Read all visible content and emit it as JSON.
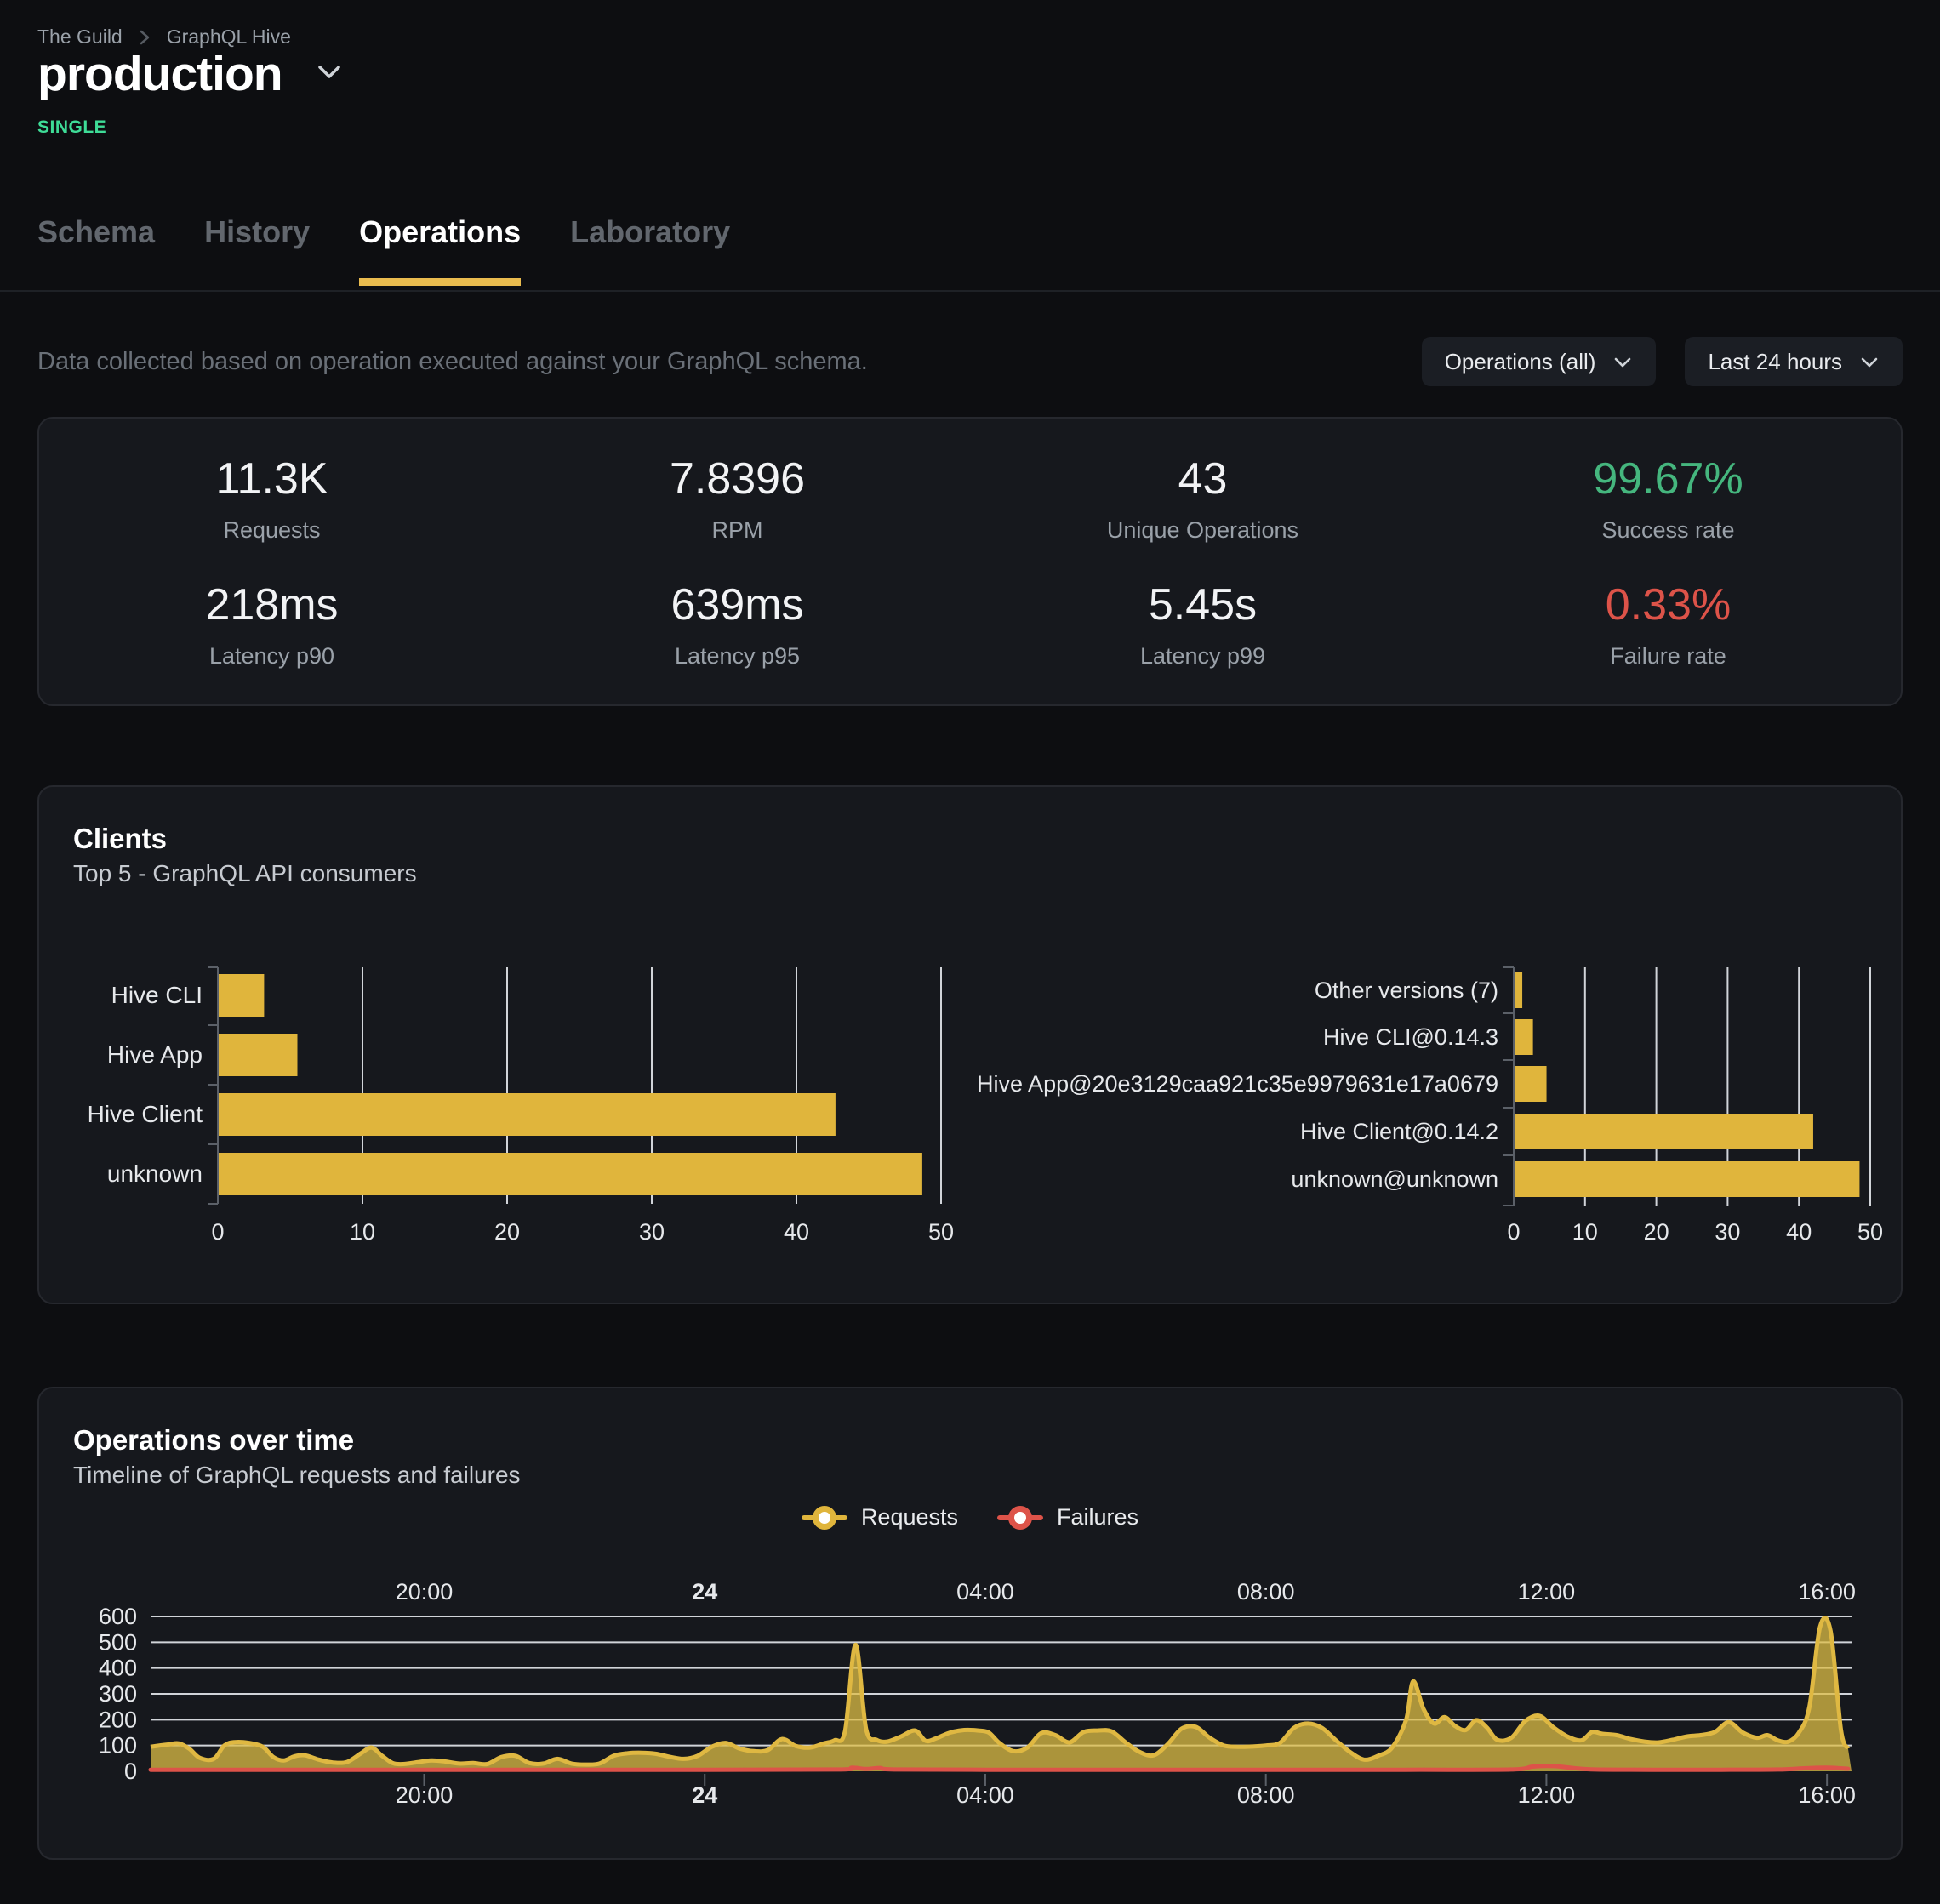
{
  "colors": {
    "accent": "#e0b53c",
    "accent_underline": "#e9bb4e",
    "timeline_line": "#dfb842",
    "timeline_fill": "rgba(222,190,70,0.75)",
    "red": "#dd5349",
    "green": "#45b67e",
    "badge_green": "#3edc97",
    "gridline": "rgba(230,233,238,0.9)",
    "axis": "#5b6068",
    "tick_label": "#e6e8eb"
  },
  "header": {
    "breadcrumb": [
      {
        "label": "The Guild"
      },
      {
        "label": "GraphQL Hive"
      }
    ],
    "title": "production",
    "badge": "SINGLE"
  },
  "tabs": [
    {
      "label": "Schema",
      "active": false
    },
    {
      "label": "History",
      "active": false
    },
    {
      "label": "Operations",
      "active": true
    },
    {
      "label": "Laboratory",
      "active": false
    }
  ],
  "controls": {
    "description": "Data collected based on operation executed against your GraphQL schema.",
    "operations_filter": "Operations (all)",
    "time_range": "Last 24 hours"
  },
  "stats": [
    {
      "value": "11.3K",
      "label": "Requests",
      "color": "default"
    },
    {
      "value": "7.8396",
      "label": "RPM",
      "color": "default"
    },
    {
      "value": "43",
      "label": "Unique Operations",
      "color": "default"
    },
    {
      "value": "99.67%",
      "label": "Success rate",
      "color": "green"
    },
    {
      "value": "218ms",
      "label": "Latency p90",
      "color": "default"
    },
    {
      "value": "639ms",
      "label": "Latency p95",
      "color": "default"
    },
    {
      "value": "5.45s",
      "label": "Latency p99",
      "color": "default"
    },
    {
      "value": "0.33%",
      "label": "Failure rate",
      "color": "red"
    }
  ],
  "clients_card": {
    "title": "Clients",
    "subtitle": "Top 5 - GraphQL API consumers"
  },
  "timeline_card": {
    "title": "Operations over time",
    "subtitle": "Timeline of GraphQL requests and failures",
    "legend": [
      {
        "label": "Requests"
      },
      {
        "label": "Failures"
      }
    ]
  },
  "chart_data": [
    {
      "id": "clients-by-name",
      "type": "bar",
      "orientation": "horizontal",
      "categories": [
        "Hive CLI",
        "Hive App",
        "Hive Client",
        "unknown"
      ],
      "values": [
        3.2,
        5.5,
        42.7,
        48.7
      ],
      "xlim": [
        0,
        50
      ],
      "xticks": [
        0,
        10,
        20,
        30,
        40,
        50
      ],
      "grid": true,
      "legend_position": "none"
    },
    {
      "id": "clients-by-version",
      "type": "bar",
      "orientation": "horizontal",
      "categories": [
        "Other versions (7)",
        "Hive CLI@0.14.3",
        "Hive App@20e3129caa921c35e9979631e17a0679",
        "Hive Client@0.14.2",
        "unknown@unknown"
      ],
      "values": [
        1.2,
        2.7,
        4.6,
        42.0,
        48.5
      ],
      "xlim": [
        0,
        50
      ],
      "xticks": [
        0,
        10,
        20,
        30,
        40,
        50
      ],
      "grid": true,
      "legend_position": "none"
    },
    {
      "id": "operations-over-time",
      "type": "area",
      "title": "Operations over time",
      "xrange": [
        16.1,
        40.35
      ],
      "xticks": [
        {
          "hour": 20,
          "label": "20:00",
          "bold": false
        },
        {
          "hour": 24,
          "label": "24",
          "bold": true
        },
        {
          "hour": 28,
          "label": "04:00",
          "bold": false
        },
        {
          "hour": 32,
          "label": "08:00",
          "bold": false
        },
        {
          "hour": 36,
          "label": "12:00",
          "bold": false
        },
        {
          "hour": 40,
          "label": "16:00",
          "bold": false
        }
      ],
      "ylim": [
        0,
        600
      ],
      "yticks": [
        0,
        100,
        200,
        300,
        400,
        500,
        600
      ],
      "grid": true,
      "legend_position": "top-center",
      "series": [
        {
          "name": "Requests",
          "points": [
            [
              16.1,
              95
            ],
            [
              16.35,
              104
            ],
            [
              16.5,
              108
            ],
            [
              16.65,
              88
            ],
            [
              16.8,
              52
            ],
            [
              17.0,
              48
            ],
            [
              17.15,
              100
            ],
            [
              17.3,
              113
            ],
            [
              17.5,
              110
            ],
            [
              17.7,
              95
            ],
            [
              17.85,
              55
            ],
            [
              18.0,
              42
            ],
            [
              18.15,
              58
            ],
            [
              18.3,
              62
            ],
            [
              18.5,
              45
            ],
            [
              18.7,
              34
            ],
            [
              18.9,
              36
            ],
            [
              19.1,
              70
            ],
            [
              19.25,
              92
            ],
            [
              19.4,
              60
            ],
            [
              19.55,
              32
            ],
            [
              19.7,
              28
            ],
            [
              19.9,
              35
            ],
            [
              20.1,
              42
            ],
            [
              20.3,
              38
            ],
            [
              20.5,
              30
            ],
            [
              20.7,
              32
            ],
            [
              20.9,
              28
            ],
            [
              21.1,
              55
            ],
            [
              21.3,
              60
            ],
            [
              21.5,
              32
            ],
            [
              21.7,
              30
            ],
            [
              21.9,
              48
            ],
            [
              22.1,
              30
            ],
            [
              22.3,
              26
            ],
            [
              22.5,
              30
            ],
            [
              22.7,
              60
            ],
            [
              22.9,
              70
            ],
            [
              23.1,
              72
            ],
            [
              23.3,
              68
            ],
            [
              23.5,
              56
            ],
            [
              23.7,
              48
            ],
            [
              23.9,
              60
            ],
            [
              24.1,
              95
            ],
            [
              24.3,
              110
            ],
            [
              24.5,
              88
            ],
            [
              24.7,
              78
            ],
            [
              24.9,
              82
            ],
            [
              25.1,
              125
            ],
            [
              25.3,
              98
            ],
            [
              25.5,
              92
            ],
            [
              25.7,
              108
            ],
            [
              25.85,
              120
            ],
            [
              26.0,
              155
            ],
            [
              26.15,
              490
            ],
            [
              26.3,
              165
            ],
            [
              26.45,
              122
            ],
            [
              26.6,
              115
            ],
            [
              26.8,
              135
            ],
            [
              27.0,
              158
            ],
            [
              27.15,
              118
            ],
            [
              27.3,
              128
            ],
            [
              27.5,
              150
            ],
            [
              27.7,
              160
            ],
            [
              27.9,
              158
            ],
            [
              28.05,
              150
            ],
            [
              28.2,
              110
            ],
            [
              28.4,
              78
            ],
            [
              28.6,
              92
            ],
            [
              28.8,
              148
            ],
            [
              29.0,
              140
            ],
            [
              29.2,
              112
            ],
            [
              29.4,
              152
            ],
            [
              29.6,
              158
            ],
            [
              29.8,
              155
            ],
            [
              30.0,
              112
            ],
            [
              30.2,
              75
            ],
            [
              30.4,
              62
            ],
            [
              30.6,
              105
            ],
            [
              30.8,
              165
            ],
            [
              31.0,
              172
            ],
            [
              31.2,
              130
            ],
            [
              31.4,
              100
            ],
            [
              31.6,
              95
            ],
            [
              31.8,
              96
            ],
            [
              32.0,
              100
            ],
            [
              32.2,
              110
            ],
            [
              32.4,
              168
            ],
            [
              32.6,
              185
            ],
            [
              32.8,
              168
            ],
            [
              33.0,
              120
            ],
            [
              33.2,
              75
            ],
            [
              33.4,
              45
            ],
            [
              33.6,
              60
            ],
            [
              33.8,
              92
            ],
            [
              34.0,
              200
            ],
            [
              34.1,
              348
            ],
            [
              34.25,
              240
            ],
            [
              34.4,
              185
            ],
            [
              34.55,
              210
            ],
            [
              34.7,
              175
            ],
            [
              34.85,
              160
            ],
            [
              35.0,
              198
            ],
            [
              35.15,
              170
            ],
            [
              35.3,
              122
            ],
            [
              35.5,
              130
            ],
            [
              35.7,
              195
            ],
            [
              35.9,
              215
            ],
            [
              36.1,
              170
            ],
            [
              36.3,
              135
            ],
            [
              36.5,
              120
            ],
            [
              36.65,
              152
            ],
            [
              36.8,
              145
            ],
            [
              37.0,
              140
            ],
            [
              37.2,
              125
            ],
            [
              37.4,
              115
            ],
            [
              37.6,
              112
            ],
            [
              37.8,
              122
            ],
            [
              38.0,
              135
            ],
            [
              38.2,
              140
            ],
            [
              38.4,
              152
            ],
            [
              38.6,
              190
            ],
            [
              38.8,
              150
            ],
            [
              39.0,
              130
            ],
            [
              39.15,
              140
            ],
            [
              39.3,
              120
            ],
            [
              39.45,
              115
            ],
            [
              39.6,
              150
            ],
            [
              39.75,
              250
            ],
            [
              39.9,
              558
            ],
            [
              40.05,
              545
            ],
            [
              40.2,
              160
            ],
            [
              40.3,
              88
            ]
          ]
        },
        {
          "name": "Failures",
          "points": [
            [
              16.1,
              6
            ],
            [
              18.0,
              6
            ],
            [
              20.0,
              6
            ],
            [
              22.0,
              6
            ],
            [
              24.0,
              6
            ],
            [
              25.9,
              7
            ],
            [
              26.1,
              14
            ],
            [
              26.3,
              9
            ],
            [
              26.5,
              13
            ],
            [
              26.7,
              7
            ],
            [
              28.0,
              6
            ],
            [
              30.0,
              6
            ],
            [
              32.0,
              6
            ],
            [
              34.0,
              6
            ],
            [
              35.5,
              7
            ],
            [
              35.8,
              18
            ],
            [
              36.1,
              20
            ],
            [
              36.4,
              12
            ],
            [
              36.7,
              7
            ],
            [
              37.5,
              6
            ],
            [
              38.5,
              6
            ],
            [
              39.3,
              7
            ],
            [
              39.7,
              12
            ],
            [
              40.0,
              14
            ],
            [
              40.3,
              10
            ]
          ]
        }
      ]
    }
  ]
}
